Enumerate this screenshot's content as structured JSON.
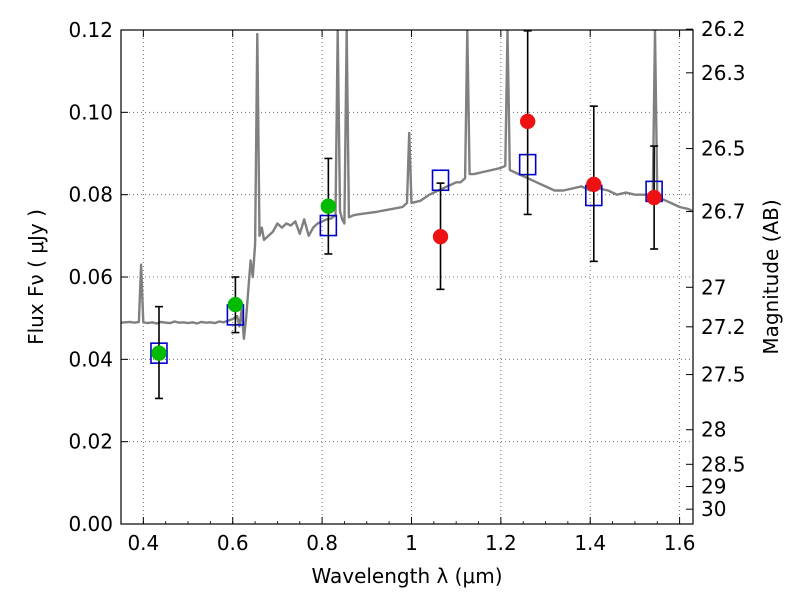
{
  "chart_data": {
    "type": "scatter",
    "xlabel": "Wavelength  λ (μm)",
    "ylabel": "Flux  Fν  ( μJy )",
    "y2label": "Magnitude (AB)",
    "xlim": [
      0.35,
      1.63
    ],
    "ylim": [
      0.0,
      0.12
    ],
    "grid": true,
    "x_ticks": [
      0.4,
      0.6,
      0.8,
      1.0,
      1.2,
      1.4,
      1.6
    ],
    "x_tick_labels": [
      "0.4",
      "0.6",
      "0.8",
      "1",
      "1.2",
      "1.4",
      "1.6"
    ],
    "y_ticks": [
      0.0,
      0.02,
      0.04,
      0.06,
      0.08,
      0.1,
      0.12
    ],
    "y_tick_labels": [
      "0.00",
      "0.02",
      "0.04",
      "0.06",
      "0.08",
      "0.10",
      "0.12"
    ],
    "y2_ticks": [
      {
        "label": "26.2",
        "flux": 0.1202
      },
      {
        "label": "26.3",
        "flux": 0.1096
      },
      {
        "label": "26.5",
        "flux": 0.0912
      },
      {
        "label": "26.7",
        "flux": 0.0759
      },
      {
        "label": "27",
        "flux": 0.0575
      },
      {
        "label": "27.2",
        "flux": 0.0479
      },
      {
        "label": "27.5",
        "flux": 0.0363
      },
      {
        "label": "28",
        "flux": 0.0229
      },
      {
        "label": "28.5",
        "flux": 0.0145
      },
      {
        "label": "29",
        "flux": 0.0091
      },
      {
        "label": "30",
        "flux": 0.0036
      }
    ],
    "colors": {
      "model_line": "#808080",
      "observed_green": "#00bb00",
      "observed_red": "#ee1111",
      "model_box": "#0000cc",
      "error_bar": "#000000",
      "grid": "#555555"
    },
    "series": [
      {
        "kind": "model_spectrum",
        "color": "#808080",
        "points": [
          [
            0.35,
            0.0489
          ],
          [
            0.36,
            0.049
          ],
          [
            0.37,
            0.0491
          ],
          [
            0.38,
            0.0489
          ],
          [
            0.39,
            0.0491
          ],
          [
            0.395,
            0.063
          ],
          [
            0.4,
            0.049
          ],
          [
            0.41,
            0.0488
          ],
          [
            0.42,
            0.049
          ],
          [
            0.43,
            0.0487
          ],
          [
            0.44,
            0.0491
          ],
          [
            0.45,
            0.0489
          ],
          [
            0.46,
            0.0488
          ],
          [
            0.47,
            0.0492
          ],
          [
            0.48,
            0.0489
          ],
          [
            0.49,
            0.049
          ],
          [
            0.5,
            0.0488
          ],
          [
            0.51,
            0.049
          ],
          [
            0.52,
            0.0487
          ],
          [
            0.53,
            0.0491
          ],
          [
            0.54,
            0.0489
          ],
          [
            0.55,
            0.049
          ],
          [
            0.56,
            0.0488
          ],
          [
            0.57,
            0.0492
          ],
          [
            0.58,
            0.049
          ],
          [
            0.59,
            0.0494
          ],
          [
            0.6,
            0.0498
          ],
          [
            0.61,
            0.0505
          ],
          [
            0.615,
            0.048
          ],
          [
            0.62,
            0.052
          ],
          [
            0.625,
            0.045
          ],
          [
            0.63,
            0.05
          ],
          [
            0.64,
            0.064
          ],
          [
            0.645,
            0.06
          ],
          [
            0.65,
            0.068
          ],
          [
            0.655,
            0.119
          ],
          [
            0.66,
            0.07
          ],
          [
            0.665,
            0.072
          ],
          [
            0.67,
            0.069
          ],
          [
            0.68,
            0.07
          ],
          [
            0.69,
            0.071
          ],
          [
            0.7,
            0.073
          ],
          [
            0.71,
            0.072
          ],
          [
            0.72,
            0.073
          ],
          [
            0.73,
            0.0725
          ],
          [
            0.74,
            0.0735
          ],
          [
            0.75,
            0.0705
          ],
          [
            0.76,
            0.074
          ],
          [
            0.77,
            0.07
          ],
          [
            0.78,
            0.072
          ],
          [
            0.79,
            0.073
          ],
          [
            0.8,
            0.0735
          ],
          [
            0.81,
            0.074
          ],
          [
            0.82,
            0.0742
          ],
          [
            0.83,
            0.075
          ],
          [
            0.835,
            0.12
          ],
          [
            0.84,
            0.076
          ],
          [
            0.845,
            0.074
          ],
          [
            0.85,
            0.073
          ],
          [
            0.855,
            0.12
          ],
          [
            0.86,
            0.0745
          ],
          [
            0.87,
            0.075
          ],
          [
            0.88,
            0.0752
          ],
          [
            0.9,
            0.0755
          ],
          [
            0.92,
            0.0758
          ],
          [
            0.94,
            0.0762
          ],
          [
            0.96,
            0.0766
          ],
          [
            0.98,
            0.077
          ],
          [
            0.99,
            0.078
          ],
          [
            0.995,
            0.095
          ],
          [
            1.0,
            0.078
          ],
          [
            1.02,
            0.0785
          ],
          [
            1.04,
            0.08
          ],
          [
            1.06,
            0.081
          ],
          [
            1.08,
            0.082
          ],
          [
            1.09,
            0.0825
          ],
          [
            1.1,
            0.083
          ],
          [
            1.11,
            0.083
          ],
          [
            1.12,
            0.084
          ],
          [
            1.125,
            0.12
          ],
          [
            1.13,
            0.085
          ],
          [
            1.14,
            0.085
          ],
          [
            1.16,
            0.0855
          ],
          [
            1.18,
            0.086
          ],
          [
            1.2,
            0.0865
          ],
          [
            1.21,
            0.087
          ],
          [
            1.215,
            0.12
          ],
          [
            1.22,
            0.086
          ],
          [
            1.24,
            0.085
          ],
          [
            1.26,
            0.084
          ],
          [
            1.28,
            0.083
          ],
          [
            1.3,
            0.082
          ],
          [
            1.32,
            0.081
          ],
          [
            1.34,
            0.081
          ],
          [
            1.36,
            0.0815
          ],
          [
            1.38,
            0.082
          ],
          [
            1.4,
            0.081
          ],
          [
            1.42,
            0.0815
          ],
          [
            1.44,
            0.081
          ],
          [
            1.46,
            0.08
          ],
          [
            1.48,
            0.0805
          ],
          [
            1.5,
            0.08
          ],
          [
            1.52,
            0.08
          ],
          [
            1.54,
            0.08
          ],
          [
            1.545,
            0.12
          ],
          [
            1.55,
            0.079
          ],
          [
            1.56,
            0.079
          ],
          [
            1.58,
            0.078
          ],
          [
            1.6,
            0.077
          ],
          [
            1.62,
            0.0765
          ],
          [
            1.63,
            0.076
          ]
        ]
      },
      {
        "kind": "observed",
        "color": "#00bb00",
        "points": [
          {
            "x": 0.435,
            "y": 0.0415,
            "err_low": 0.0305,
            "err_high": 0.0528
          },
          {
            "x": 0.606,
            "y": 0.0533,
            "err_low": 0.0465,
            "err_high": 0.06
          },
          {
            "x": 0.814,
            "y": 0.0772,
            "err_low": 0.0656,
            "err_high": 0.0888
          }
        ]
      },
      {
        "kind": "observed",
        "color": "#ee1111",
        "points": [
          {
            "x": 1.065,
            "y": 0.0698,
            "err_low": 0.057,
            "err_high": 0.0828
          },
          {
            "x": 1.26,
            "y": 0.0978,
            "err_low": 0.0752,
            "err_high": 0.1198
          },
          {
            "x": 1.408,
            "y": 0.0825,
            "err_low": 0.0638,
            "err_high": 0.1015
          },
          {
            "x": 1.543,
            "y": 0.0793,
            "err_low": 0.0668,
            "err_high": 0.0918
          }
        ]
      },
      {
        "kind": "model_photometry",
        "color": "#0000cc",
        "points": [
          {
            "x": 0.435,
            "y": 0.0415
          },
          {
            "x": 0.606,
            "y": 0.0508
          },
          {
            "x": 0.814,
            "y": 0.0725
          },
          {
            "x": 1.065,
            "y": 0.0835
          },
          {
            "x": 1.26,
            "y": 0.0873
          },
          {
            "x": 1.408,
            "y": 0.0798
          },
          {
            "x": 1.543,
            "y": 0.0808
          }
        ]
      }
    ]
  }
}
